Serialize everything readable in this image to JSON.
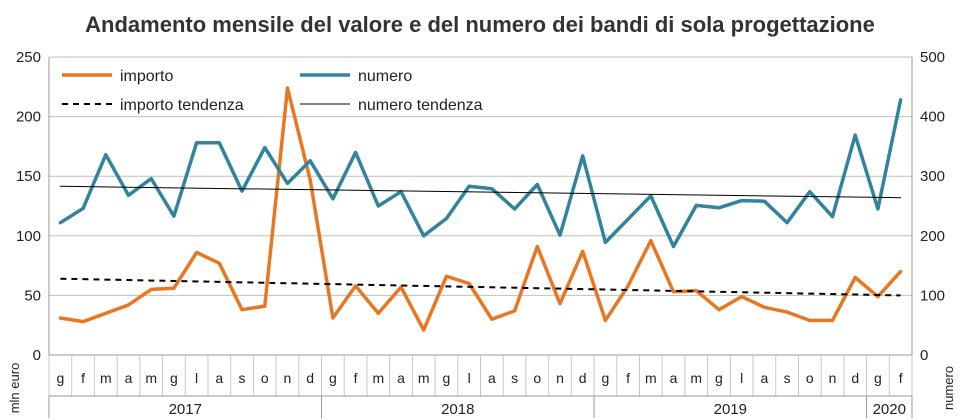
{
  "chart_data": {
    "type": "line",
    "title": "Andamento mensile del valore e del numero dei bandi di sola progettazione",
    "ylabel_left": "mln euro",
    "ylabel_right": "numero",
    "ylim_left": [
      0,
      250
    ],
    "ylim_right": [
      0,
      500
    ],
    "yticks_left": [
      "0",
      "50",
      "100",
      "150",
      "200",
      "250"
    ],
    "yticks_right": [
      "0",
      "100",
      "200",
      "300",
      "400",
      "500"
    ],
    "grid": "horizontal",
    "legend_position": "top-left",
    "months": [
      "g",
      "f",
      "m",
      "a",
      "m",
      "g",
      "l",
      "a",
      "s",
      "o",
      "n",
      "d",
      "g",
      "f",
      "m",
      "a",
      "m",
      "g",
      "l",
      "a",
      "s",
      "o",
      "n",
      "d",
      "g",
      "f",
      "m",
      "a",
      "m",
      "g",
      "l",
      "a",
      "s",
      "o",
      "n",
      "d",
      "g",
      "f"
    ],
    "years": [
      {
        "label": "2017",
        "start": 0,
        "count": 12
      },
      {
        "label": "2018",
        "start": 12,
        "count": 12
      },
      {
        "label": "2019",
        "start": 24,
        "count": 12
      },
      {
        "label": "2020",
        "start": 36,
        "count": 2
      }
    ],
    "series": [
      {
        "name": "importo",
        "axis": "left",
        "color": "#E87722",
        "style": "solid",
        "values": [
          31,
          28,
          35,
          42,
          55,
          56,
          86,
          77,
          38,
          41,
          224,
          147,
          31,
          58,
          35,
          57,
          21,
          66,
          60,
          30,
          37,
          91,
          43,
          87,
          29,
          58,
          96,
          53,
          54,
          38,
          49,
          40,
          36,
          29,
          29,
          65,
          49,
          70
        ]
      },
      {
        "name": "numero",
        "axis": "right",
        "color": "#31849B",
        "style": "solid",
        "values": [
          222,
          246,
          336,
          268,
          296,
          233,
          356,
          356,
          275,
          348,
          288,
          326,
          262,
          340,
          250,
          274,
          200,
          229,
          283,
          279,
          245,
          286,
          201,
          334,
          189,
          228,
          267,
          182,
          251,
          247,
          259,
          258,
          222,
          274,
          232,
          369,
          245,
          428
        ]
      },
      {
        "name": "importo tendenza",
        "axis": "left",
        "color": "#000000",
        "style": "dashed",
        "values": [
          64,
          50
        ]
      },
      {
        "name": "numero tendenza",
        "axis": "right",
        "color": "#000000",
        "style": "thin",
        "values": [
          283,
          264
        ]
      }
    ]
  }
}
